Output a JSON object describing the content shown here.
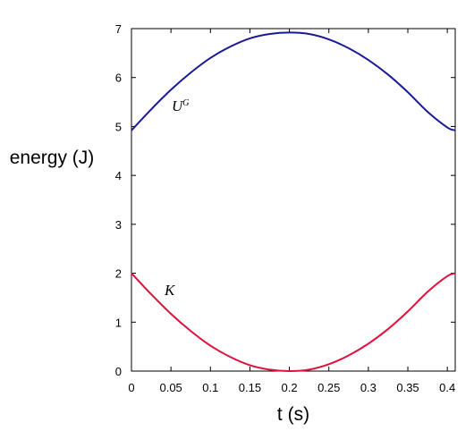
{
  "chart_data": {
    "type": "line",
    "xlabel": "t (s)",
    "ylabel": "energy (J)",
    "xlim": [
      0,
      0.41
    ],
    "ylim": [
      0,
      7
    ],
    "xticks": [
      "0",
      "0.05",
      "0.1",
      "0.15",
      "0.2",
      "0.25",
      "0.3",
      "0.35",
      "0.4"
    ],
    "yticks": [
      "0",
      "1",
      "2",
      "3",
      "4",
      "5",
      "6",
      "7"
    ],
    "grid": false,
    "series": [
      {
        "name": "UG",
        "label_main": "U",
        "label_sup": "G",
        "color": "#1a1a96",
        "x": [
          0,
          0.025,
          0.05,
          0.075,
          0.1,
          0.125,
          0.15,
          0.175,
          0.2,
          0.225,
          0.25,
          0.275,
          0.3,
          0.325,
          0.35,
          0.375,
          0.4,
          0.41
        ],
        "y": [
          4.92,
          5.35,
          5.75,
          6.1,
          6.4,
          6.63,
          6.8,
          6.89,
          6.92,
          6.89,
          6.78,
          6.6,
          6.36,
          6.06,
          5.7,
          5.3,
          4.98,
          4.92
        ]
      },
      {
        "name": "K",
        "label_main": "K",
        "color": "#e0103c",
        "x": [
          0,
          0.025,
          0.05,
          0.075,
          0.1,
          0.125,
          0.15,
          0.175,
          0.2,
          0.225,
          0.25,
          0.275,
          0.3,
          0.325,
          0.35,
          0.375,
          0.4,
          0.41
        ],
        "y": [
          2.0,
          1.57,
          1.17,
          0.82,
          0.52,
          0.29,
          0.12,
          0.03,
          0.0,
          0.03,
          0.14,
          0.32,
          0.56,
          0.86,
          1.22,
          1.62,
          1.94,
          2.0
        ]
      }
    ]
  }
}
